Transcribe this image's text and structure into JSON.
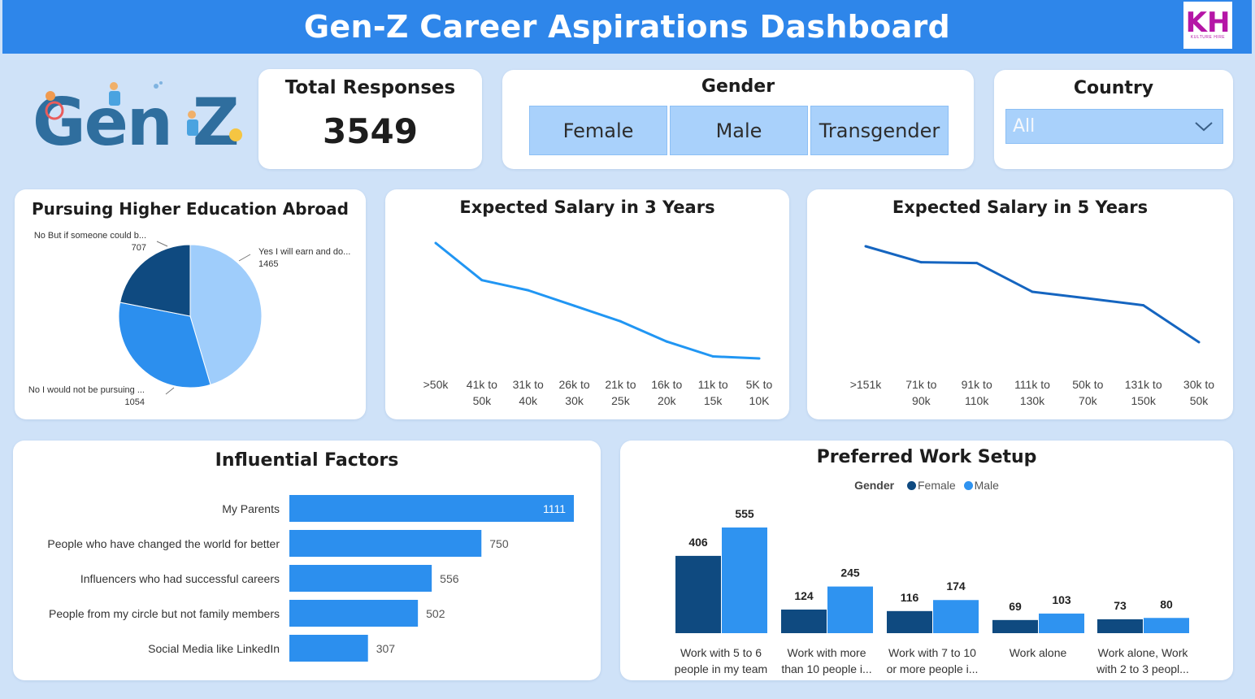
{
  "header": {
    "title": "Gen-Z Career Aspirations Dashboard",
    "logo_text": "KH",
    "logo_subtext": "KULTURE HIRE"
  },
  "brand": {
    "logo_text": "Gen Z"
  },
  "total_responses": {
    "label": "Total Responses",
    "value": "3549"
  },
  "gender_filter": {
    "label": "Gender",
    "options": [
      "Female",
      "Male",
      "Transgender"
    ]
  },
  "country_filter": {
    "label": "Country",
    "selected": "All"
  },
  "colors": {
    "header": "#2e86ea",
    "dark_blue": "#0f4a80",
    "mid_blue": "#2c8fee",
    "light_blue": "#9fcdfb",
    "line_3y": "#2196f3",
    "line_5y": "#1565c0"
  },
  "charts": {
    "abroad": {
      "title": "Pursuing Higher Education Abroad"
    },
    "salary3": {
      "title": "Expected Salary in 3 Years"
    },
    "salary5": {
      "title": "Expected Salary in 5 Years"
    },
    "factors": {
      "title": "Influential Factors"
    },
    "work": {
      "title": "Preferred Work Setup",
      "legend_title": "Gender"
    }
  },
  "chart_data": [
    {
      "id": "abroad",
      "type": "pie",
      "title": "Pursuing Higher Education Abroad",
      "slices": [
        {
          "label": "Yes I will earn and do...",
          "value": 1465
        },
        {
          "label": "No I would not be pursuing ...",
          "value": 1054
        },
        {
          "label": "No But if someone could b...",
          "value": 707
        }
      ]
    },
    {
      "id": "salary3",
      "type": "line",
      "title": "Expected Salary in 3 Years",
      "categories": [
        ">50k",
        "41k to 50k",
        "31k to 40k",
        "26k to 30k",
        "21k to 25k",
        "16k to 20k",
        "11k to 15k",
        "5K to 10K"
      ],
      "values": [
        1000,
        725,
        650,
        535,
        420,
        270,
        160,
        145
      ]
    },
    {
      "id": "salary5",
      "type": "line",
      "title": "Expected Salary in 5 Years",
      "categories": [
        ">151k",
        "71k to 90k",
        "91k to 110k",
        "111k to 130k",
        "50k to 70k",
        "131k to 150k",
        "30k to 50k"
      ],
      "values": [
        560,
        495,
        492,
        375,
        348,
        320,
        170
      ]
    },
    {
      "id": "factors",
      "type": "bar",
      "orientation": "horizontal",
      "title": "Influential Factors",
      "categories": [
        "My Parents",
        "People who have changed the world for better",
        "Influencers who had successful careers",
        "People from my circle but not family members",
        "Social Media like LinkedIn"
      ],
      "values": [
        1111,
        750,
        556,
        502,
        307
      ]
    },
    {
      "id": "work",
      "type": "bar",
      "title": "Preferred Work Setup",
      "legend_title": "Gender",
      "categories": [
        [
          "Work with 5 to 6",
          "people in my team"
        ],
        [
          "Work with more",
          "than 10 people i..."
        ],
        [
          "Work with 7 to 10",
          "or more people i..."
        ],
        [
          "Work alone"
        ],
        [
          "Work alone, Work",
          "with 2 to 3 peopl..."
        ]
      ],
      "series": [
        {
          "name": "Female",
          "color": "#0f4a80",
          "values": [
            406,
            124,
            116,
            69,
            73
          ]
        },
        {
          "name": "Male",
          "color": "#2f93f0",
          "values": [
            555,
            245,
            174,
            103,
            80
          ]
        }
      ]
    }
  ]
}
